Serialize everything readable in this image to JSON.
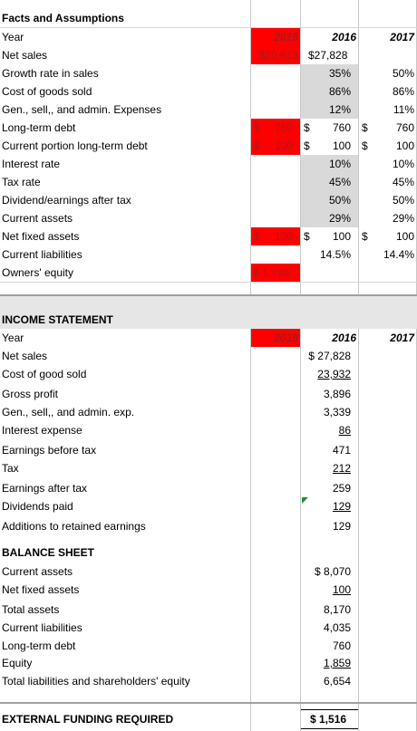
{
  "facts": {
    "title": "Facts and Assumptions",
    "header": {
      "label": "Year",
      "y2015": "2015",
      "y2016": "2016",
      "y2017": "2017"
    },
    "rows": [
      {
        "label": "Net sales",
        "v2015": "$20,613",
        "v2016": "$27,828",
        "v2017": ""
      },
      {
        "label": "Growth rate in sales",
        "v2015": "",
        "v2016": "35%",
        "v2017": "50%"
      },
      {
        "label": "Cost of goods sold",
        "v2015": "",
        "v2016": "86%",
        "v2017": "86%"
      },
      {
        "label": "Gen., sell,, and admin. Expenses",
        "v2015": "",
        "v2016": "12%",
        "v2017": "11%"
      },
      {
        "label": "Long-term debt",
        "v2015": "760",
        "v2016": "760",
        "v2017": "760"
      },
      {
        "label": "Current portion long-term debt",
        "v2015": "100",
        "v2016": "100",
        "v2017": "100"
      },
      {
        "label": "Interest rate",
        "v2015": "",
        "v2016": "10%",
        "v2017": "10%"
      },
      {
        "label": "Tax rate",
        "v2015": "",
        "v2016": "45%",
        "v2017": "45%"
      },
      {
        "label": "Dividend/earnings after tax",
        "v2015": "",
        "v2016": "50%",
        "v2017": "50%"
      },
      {
        "label": "Current assets",
        "v2015": "",
        "v2016": "29%",
        "v2017": "29%"
      },
      {
        "label": "Net fixed assets",
        "v2015": "100",
        "v2016": "100",
        "v2017": "100"
      },
      {
        "label": "Current liabilities",
        "v2015": "",
        "v2016": "14.5%",
        "v2017": "14.4%"
      },
      {
        "label": "Owners' equity",
        "v2015": "$ 1,730",
        "v2016": "",
        "v2017": ""
      }
    ]
  },
  "income": {
    "title": "INCOME STATEMENT",
    "header": {
      "label": "Year",
      "y2015": "2015",
      "y2016": "2016",
      "y2017": "2017"
    },
    "rows": [
      {
        "label": "Net sales",
        "v2016": "$ 27,828"
      },
      {
        "label": "Cost of good sold",
        "v2016": "23,932"
      },
      {
        "label": "Gross profit",
        "v2016": "3,896"
      },
      {
        "label": "Gen., sell,, and admin. exp.",
        "v2016": "3,339"
      },
      {
        "label": "Interest expense",
        "v2016": "86"
      },
      {
        "label": "Earnings before tax",
        "v2016": "471"
      },
      {
        "label": "Tax",
        "v2016": "212"
      },
      {
        "label": "Earnings after tax",
        "v2016": "259"
      },
      {
        "label": "Dividends paid",
        "v2016": "129"
      },
      {
        "label": "Additions to retained earnings",
        "v2016": "129"
      }
    ]
  },
  "balance": {
    "title": "BALANCE SHEET",
    "rows": [
      {
        "label": "Current assets",
        "v2016": "$ 8,070"
      },
      {
        "label": "Net fixed assets",
        "v2016": "100"
      },
      {
        "label": "Total assets",
        "v2016": "8,170"
      },
      {
        "label": "Current liabilities",
        "v2016": "4,035"
      },
      {
        "label": "Long-term debt",
        "v2016": "760"
      },
      {
        "label": "Equity",
        "v2016": "1,859"
      },
      {
        "label": "Total liabilities and shareholders' equity",
        "v2016": "6,654"
      }
    ]
  },
  "external": {
    "label": "EXTERNAL FUNDING REQUIRED",
    "value": "$ 1,516"
  },
  "currency_symbol": "$",
  "colors": {
    "highlight_red": "#ff0000",
    "input_grey": "#d9d9d9",
    "header_band": "#e6e6e6"
  }
}
